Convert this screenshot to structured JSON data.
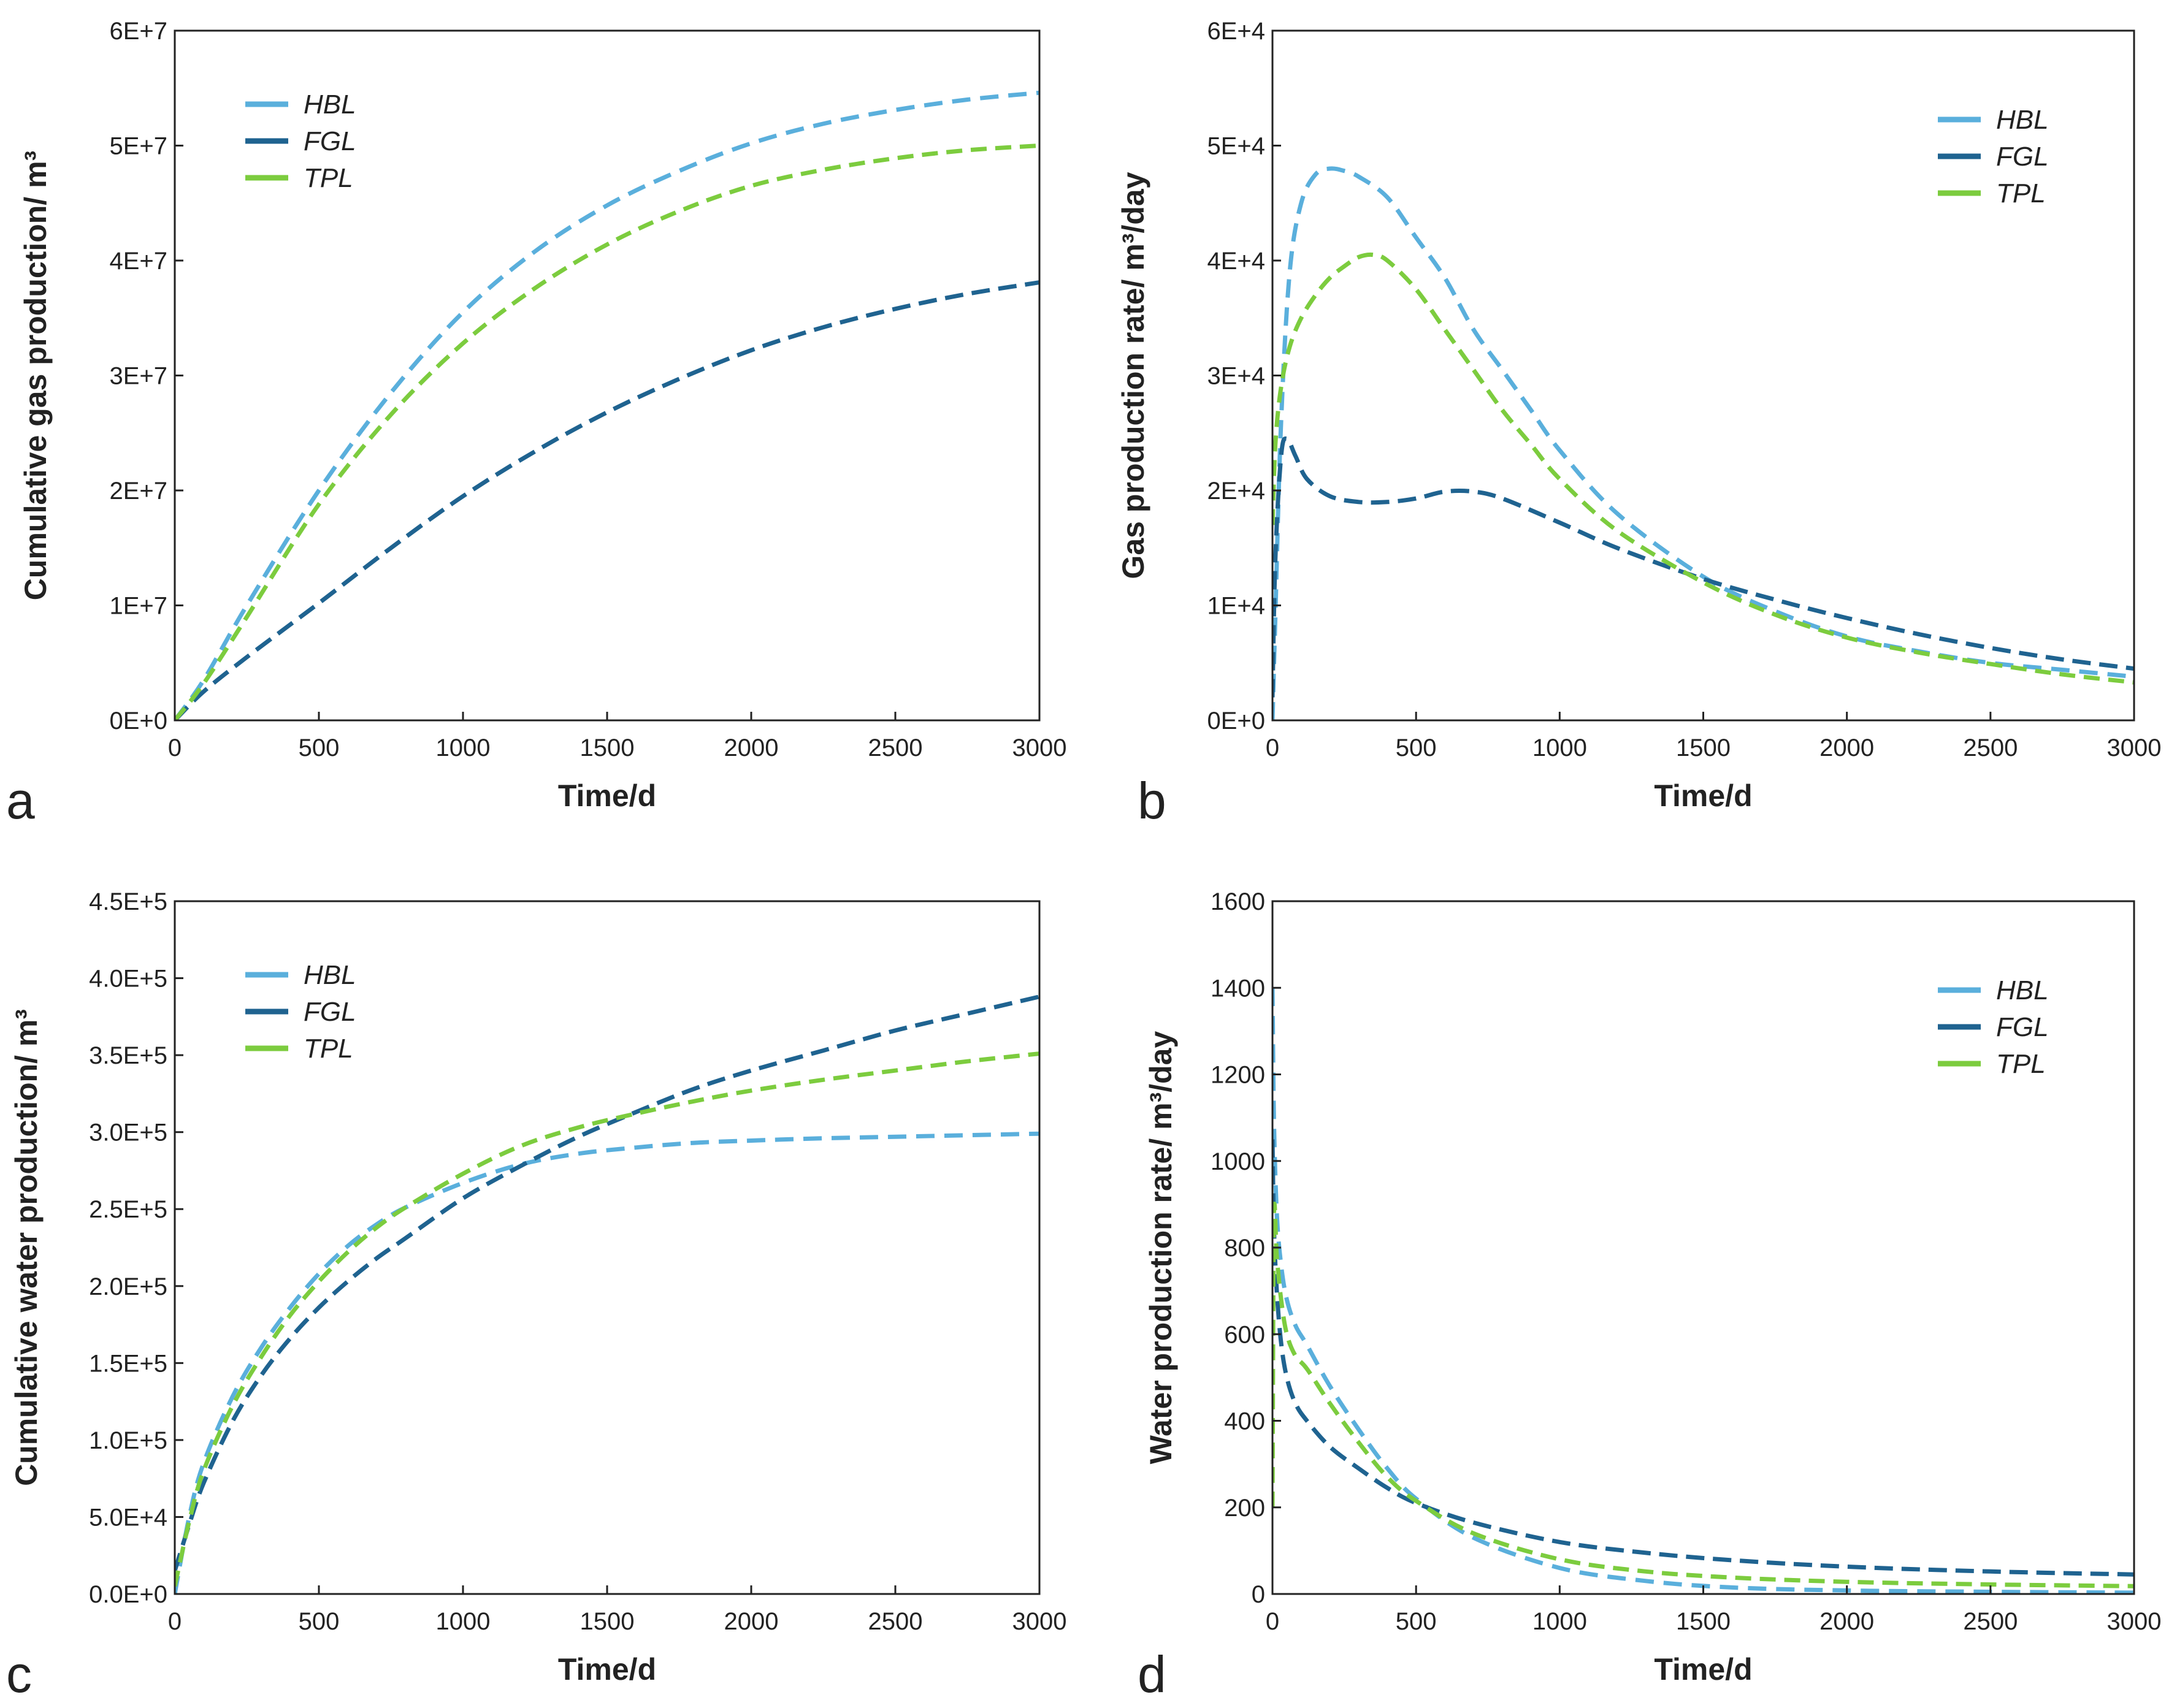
{
  "chart_data": [
    {
      "panel": "a",
      "type": "line",
      "title": "",
      "xlabel": "Time/d",
      "ylabel": "Cumulative gas production/ m³",
      "xlim": [
        0,
        3000
      ],
      "ylim": [
        0,
        60000000
      ],
      "x_ticks": [
        0,
        500,
        1000,
        1500,
        2000,
        2500,
        3000
      ],
      "x_tick_labels": [
        "0",
        "500",
        "1000",
        "1500",
        "2000",
        "2500",
        "3000"
      ],
      "y_ticks": [
        0,
        10000000,
        20000000,
        30000000,
        40000000,
        50000000,
        60000000
      ],
      "y_tick_labels": [
        "0E+0",
        "1E+7",
        "2E+7",
        "3E+7",
        "4E+7",
        "5E+7",
        "6E+7"
      ],
      "legend_position": "top-left",
      "series": [
        {
          "name": "HBL",
          "color": "#5aafdc",
          "x": [
            0,
            100,
            250,
            500,
            750,
            1000,
            1250,
            1500,
            1750,
            2000,
            2250,
            2500,
            2750,
            3000
          ],
          "values": [
            0,
            3500000,
            10000000,
            20000000,
            28500000,
            35500000,
            40800000,
            44800000,
            47800000,
            50200000,
            51900000,
            53100000,
            54000000,
            54600000
          ]
        },
        {
          "name": "FGL",
          "color": "#1f6390",
          "x": [
            0,
            100,
            250,
            500,
            750,
            1000,
            1250,
            1500,
            1750,
            2000,
            2250,
            2500,
            2750,
            3000
          ],
          "values": [
            0,
            2500000,
            5500000,
            10200000,
            15000000,
            19500000,
            23400000,
            26800000,
            29700000,
            32200000,
            34200000,
            35800000,
            37100000,
            38100000
          ]
        },
        {
          "name": "TPL",
          "color": "#7ccc3e",
          "x": [
            0,
            100,
            250,
            500,
            750,
            1000,
            1250,
            1500,
            1750,
            2000,
            2250,
            2500,
            2750,
            3000
          ],
          "values": [
            0,
            3200000,
            9000000,
            18800000,
            26600000,
            32800000,
            37600000,
            41400000,
            44300000,
            46500000,
            47900000,
            48900000,
            49600000,
            50000000
          ]
        }
      ]
    },
    {
      "panel": "b",
      "type": "line",
      "title": "",
      "xlabel": "Time/d",
      "ylabel": "Gas production rate/ m³/day",
      "xlim": [
        0,
        3000
      ],
      "ylim": [
        0,
        60000
      ],
      "x_ticks": [
        0,
        500,
        1000,
        1500,
        2000,
        2500,
        3000
      ],
      "x_tick_labels": [
        "0",
        "500",
        "1000",
        "1500",
        "2000",
        "2500",
        "3000"
      ],
      "y_ticks": [
        0,
        10000,
        20000,
        30000,
        40000,
        50000,
        60000
      ],
      "y_tick_labels": [
        "0E+0",
        "1E+4",
        "2E+4",
        "3E+4",
        "4E+4",
        "5E+4",
        "6E+4"
      ],
      "legend_position": "top-right",
      "series": [
        {
          "name": "HBL",
          "color": "#5aafdc",
          "x": [
            0,
            10,
            30,
            60,
            100,
            150,
            200,
            250,
            300,
            400,
            500,
            600,
            700,
            800,
            900,
            1000,
            1200,
            1500,
            1750,
            2000,
            2250,
            2500,
            2750,
            3000
          ],
          "values": [
            0,
            9000,
            26000,
            39000,
            45000,
            47500,
            48000,
            47800,
            47300,
            45500,
            42000,
            38500,
            34000,
            30500,
            27000,
            23500,
            18000,
            12500,
            9500,
            7300,
            6000,
            5000,
            4400,
            3800
          ]
        },
        {
          "name": "FGL",
          "color": "#1f6390",
          "x": [
            0,
            10,
            30,
            50,
            80,
            120,
            200,
            300,
            400,
            500,
            600,
            700,
            800,
            1000,
            1200,
            1500,
            1750,
            2000,
            2250,
            2500,
            2750,
            3000
          ],
          "values": [
            2000,
            14000,
            23000,
            24500,
            23000,
            21000,
            19500,
            19000,
            19000,
            19300,
            19900,
            19900,
            19300,
            17200,
            15000,
            12300,
            10500,
            8900,
            7500,
            6300,
            5300,
            4500
          ]
        },
        {
          "name": "TPL",
          "color": "#7ccc3e",
          "x": [
            0,
            10,
            30,
            60,
            100,
            150,
            200,
            250,
            300,
            350,
            400,
            500,
            600,
            700,
            800,
            900,
            1000,
            1200,
            1500,
            1750,
            2000,
            2250,
            2500,
            2750,
            3000
          ],
          "values": [
            17000,
            24000,
            29000,
            32500,
            35000,
            37000,
            38500,
            39500,
            40300,
            40500,
            40000,
            37500,
            34000,
            30500,
            27000,
            24000,
            21000,
            16500,
            12000,
            9200,
            7200,
            5900,
            4900,
            4000,
            3300
          ]
        }
      ]
    },
    {
      "panel": "c",
      "type": "line",
      "title": "",
      "xlabel": "Time/d",
      "ylabel": "Cumulative water production/ m³",
      "xlim": [
        0,
        3000
      ],
      "ylim": [
        0,
        450000
      ],
      "x_ticks": [
        0,
        500,
        1000,
        1500,
        2000,
        2500,
        3000
      ],
      "x_tick_labels": [
        "0",
        "500",
        "1000",
        "1500",
        "2000",
        "2500",
        "3000"
      ],
      "y_ticks": [
        0,
        50000,
        100000,
        150000,
        200000,
        250000,
        300000,
        350000,
        400000,
        450000
      ],
      "y_tick_labels": [
        "0.0E+0",
        "5.0E+4",
        "1.0E+5",
        "1.5E+5",
        "2.0E+5",
        "2.5E+5",
        "3.0E+5",
        "3.5E+5",
        "4.0E+5",
        "4.5E+5"
      ],
      "legend_position": "top-left",
      "series": [
        {
          "name": "HBL",
          "color": "#5aafdc",
          "x": [
            0,
            50,
            100,
            200,
            300,
            400,
            500,
            600,
            700,
            800,
            1000,
            1200,
            1400,
            1600,
            1800,
            2000,
            2250,
            2500,
            2750,
            3000
          ],
          "values": [
            0,
            50000,
            85000,
            128000,
            160000,
            186000,
            208000,
            226000,
            240000,
            251000,
            267000,
            279000,
            286000,
            290000,
            293000,
            294500,
            296000,
            297000,
            298000,
            299000
          ]
        },
        {
          "name": "FGL",
          "color": "#1f6390",
          "x": [
            0,
            50,
            100,
            200,
            300,
            400,
            500,
            600,
            700,
            800,
            1000,
            1200,
            1400,
            1600,
            1800,
            2000,
            2250,
            2500,
            2750,
            3000
          ],
          "values": [
            15000,
            45000,
            72000,
            112000,
            142000,
            166000,
            186000,
            203000,
            218000,
            231000,
            257000,
            278000,
            297000,
            313000,
            328000,
            340000,
            353000,
            366000,
            377000,
            388000
          ]
        },
        {
          "name": "TPL",
          "color": "#7ccc3e",
          "x": [
            0,
            50,
            100,
            200,
            300,
            400,
            500,
            600,
            700,
            800,
            1000,
            1200,
            1400,
            1600,
            1800,
            2000,
            2250,
            2500,
            2750,
            3000
          ],
          "values": [
            5000,
            47000,
            80000,
            122000,
            154000,
            181000,
            203000,
            222000,
            238000,
            251000,
            273000,
            291000,
            303000,
            312000,
            320000,
            327000,
            334000,
            340000,
            346000,
            351000
          ]
        }
      ]
    },
    {
      "panel": "d",
      "type": "line",
      "title": "",
      "xlabel": "Time/d",
      "ylabel": "Water production rate/ m³/day",
      "xlim": [
        0,
        3000
      ],
      "ylim": [
        0,
        1600
      ],
      "x_ticks": [
        0,
        500,
        1000,
        1500,
        2000,
        2500,
        3000
      ],
      "x_tick_labels": [
        "0",
        "500",
        "1000",
        "1500",
        "2000",
        "2500",
        "3000"
      ],
      "y_ticks": [
        0,
        200,
        400,
        600,
        800,
        1000,
        1200,
        1400,
        1600
      ],
      "y_tick_labels": [
        "0",
        "200",
        "400",
        "600",
        "800",
        "1000",
        "1200",
        "1400",
        "1600"
      ],
      "legend_position": "top-right",
      "series": [
        {
          "name": "HBL",
          "color": "#5aafdc",
          "x": [
            0,
            5,
            15,
            30,
            50,
            80,
            120,
            200,
            300,
            400,
            500,
            700,
            1000,
            1300,
            1600,
            2000,
            2500,
            3000
          ],
          "values": [
            1400,
            1100,
            880,
            760,
            680,
            620,
            575,
            480,
            380,
            290,
            220,
            130,
            60,
            30,
            15,
            8,
            5,
            3
          ]
        },
        {
          "name": "FGL",
          "color": "#1f6390",
          "x": [
            0,
            5,
            15,
            30,
            50,
            80,
            120,
            200,
            300,
            400,
            500,
            700,
            1000,
            1300,
            1600,
            2000,
            2500,
            3000
          ],
          "values": [
            1050,
            850,
            700,
            580,
            500,
            440,
            400,
            340,
            290,
            245,
            210,
            165,
            120,
            95,
            78,
            63,
            52,
            45
          ]
        },
        {
          "name": "TPL",
          "color": "#7ccc3e",
          "x": [
            0,
            5,
            15,
            30,
            50,
            80,
            120,
            200,
            300,
            400,
            500,
            700,
            1000,
            1300,
            1600,
            2000,
            2500,
            3000
          ],
          "values": [
            200,
            870,
            780,
            680,
            600,
            550,
            520,
            440,
            350,
            270,
            215,
            140,
            80,
            52,
            38,
            28,
            22,
            18
          ]
        }
      ]
    }
  ]
}
